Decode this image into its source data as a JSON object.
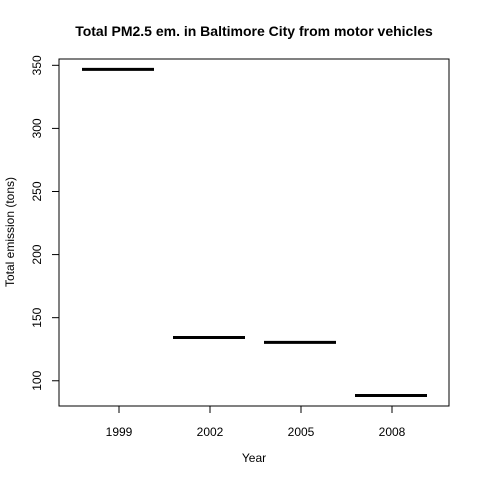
{
  "chart_data": {
    "type": "bar",
    "title": "Total PM2.5 em. in Baltimore City from motor vehicles",
    "xlabel": "Year",
    "ylabel": "Total emission (tons)",
    "categories": [
      "1999",
      "2002",
      "2005",
      "2008"
    ],
    "values": [
      346.8,
      134.3,
      130.4,
      88.3
    ],
    "ylim": [
      80,
      355
    ],
    "yticks": [
      100,
      150,
      200,
      250,
      300,
      350
    ],
    "grid": false,
    "bar_color": "#000000"
  }
}
